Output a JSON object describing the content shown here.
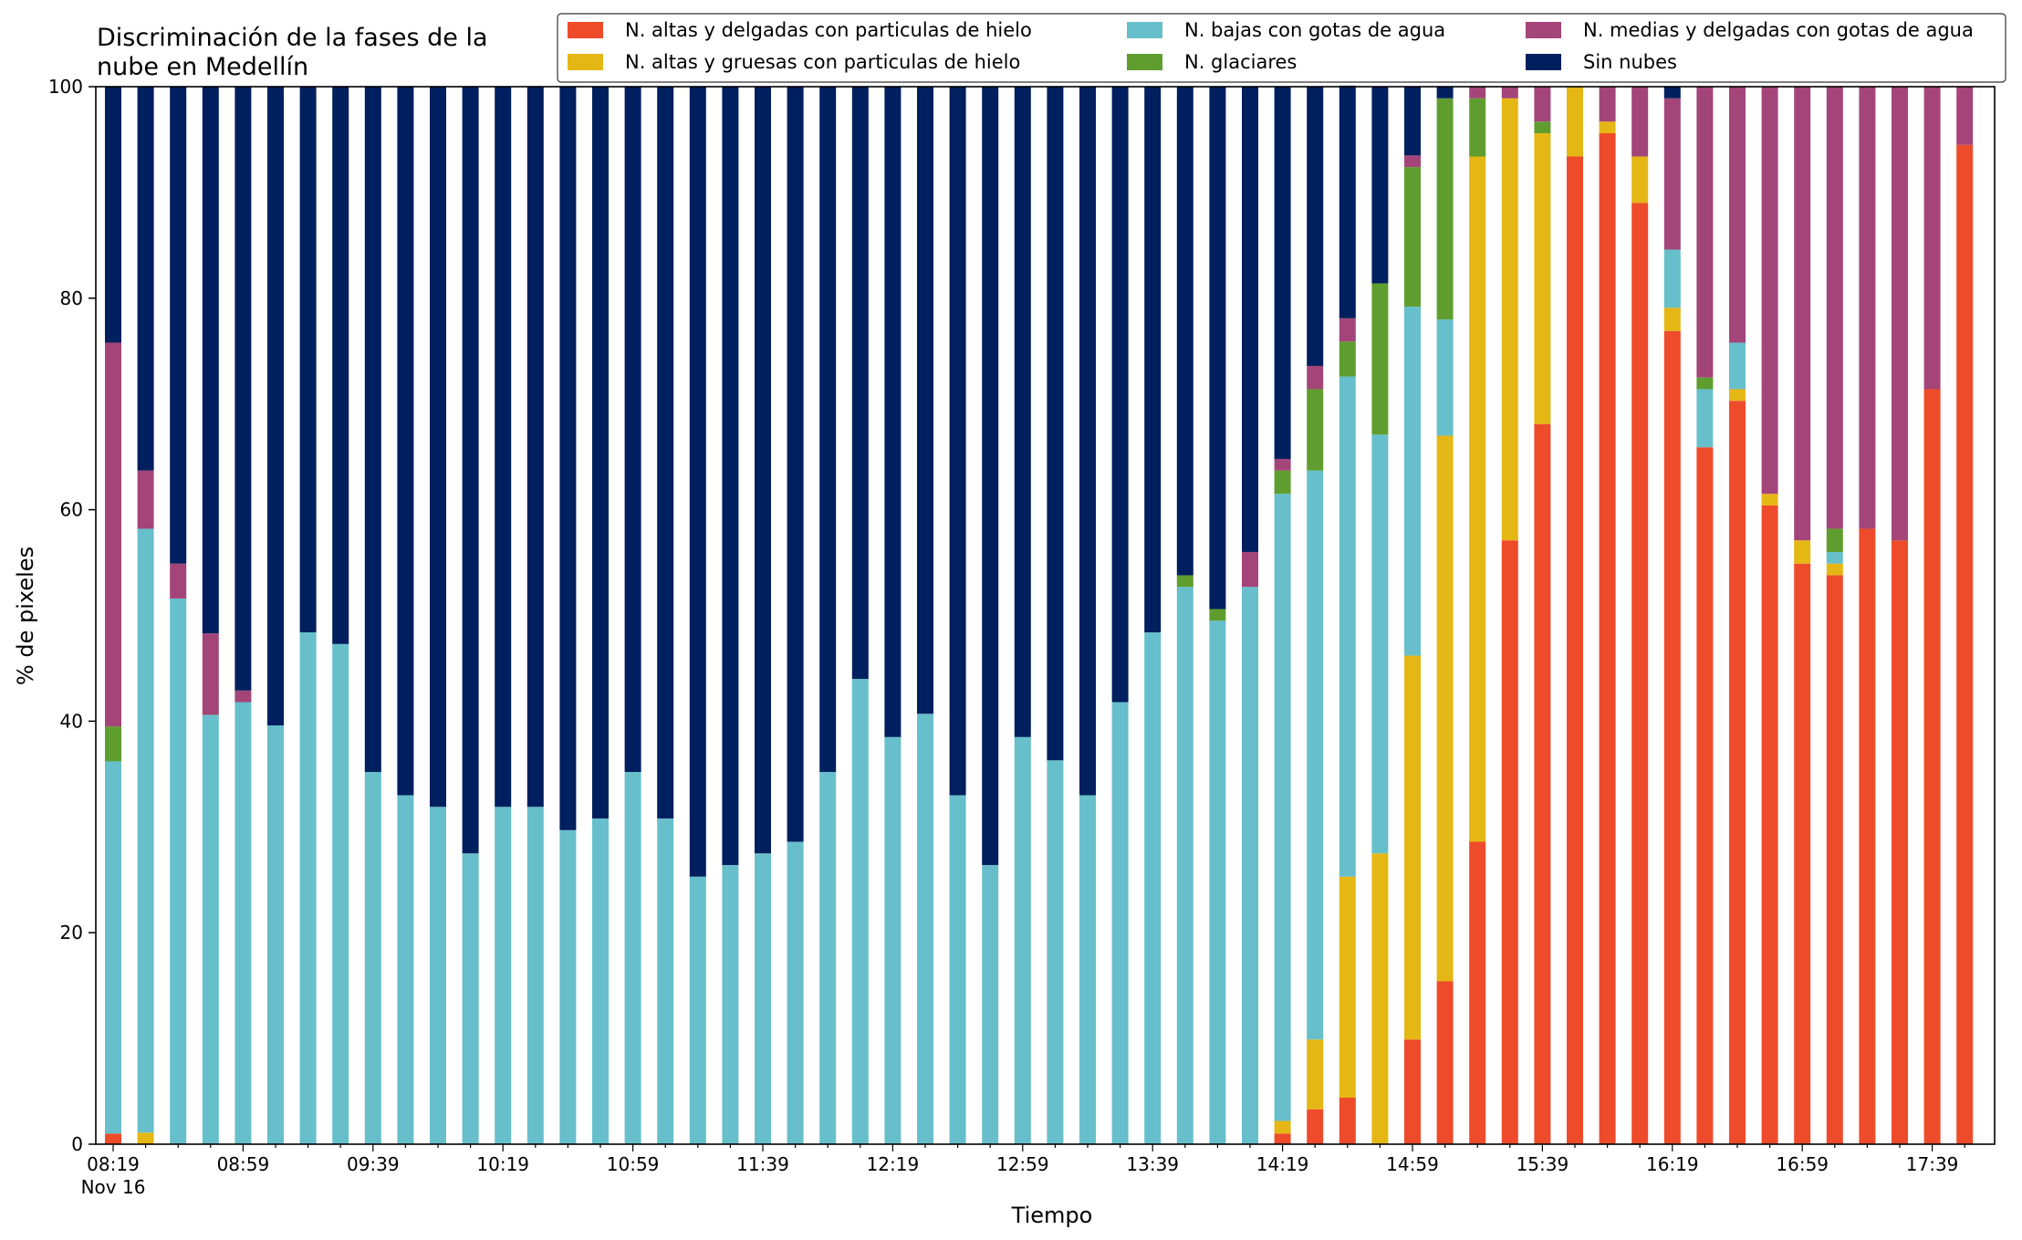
{
  "chart_data": {
    "type": "bar",
    "stacked": true,
    "title": "Discriminación de la fases de la\nnube en Medellín",
    "xlabel": "Tiempo",
    "ylabel": "% de pixeles",
    "ylim": [
      0,
      100
    ],
    "yticks": [
      0,
      20,
      40,
      60,
      80,
      100
    ],
    "grid": false,
    "legend_position": "top-right",
    "x_tick_labels": [
      "08:19",
      "08:59",
      "09:39",
      "10:19",
      "10:59",
      "11:39",
      "12:19",
      "12:59",
      "13:39",
      "14:19",
      "14:59",
      "15:39",
      "16:19",
      "16:59",
      "17:39"
    ],
    "x_tick_sublabel": "Nov 16",
    "categories": [
      "08:19",
      "08:29",
      "08:39",
      "08:49",
      "08:59",
      "09:09",
      "09:19",
      "09:29",
      "09:39",
      "09:49",
      "09:59",
      "10:09",
      "10:19",
      "10:29",
      "10:39",
      "10:49",
      "10:59",
      "11:09",
      "11:19",
      "11:29",
      "11:39",
      "11:49",
      "11:59",
      "12:09",
      "12:19",
      "12:29",
      "12:39",
      "12:49",
      "12:59",
      "13:09",
      "13:19",
      "13:29",
      "13:39",
      "13:49",
      "13:59",
      "14:09",
      "14:19",
      "14:29",
      "14:39",
      "14:49",
      "14:59",
      "15:09",
      "15:19",
      "15:29",
      "15:39",
      "15:49",
      "15:59",
      "16:09",
      "16:19",
      "16:29",
      "16:39",
      "16:49",
      "16:59",
      "17:09",
      "17:19",
      "17:29",
      "17:39",
      "17:49"
    ],
    "series": [
      {
        "name": "N. altas y delgadas con particulas de hielo",
        "color": "#ee4b2b",
        "values": [
          1,
          0,
          0,
          0,
          0,
          0,
          0,
          0,
          0,
          0,
          0,
          0,
          0,
          0,
          0,
          0,
          0,
          0,
          0,
          0,
          0,
          0,
          0,
          0,
          0,
          0,
          0,
          0,
          0,
          0,
          0,
          0,
          0,
          0,
          0,
          0,
          1,
          3.3,
          4.4,
          0,
          9.9,
          15.4,
          28.6,
          57.1,
          68.1,
          93.4,
          95.6,
          89,
          76.9,
          65.9,
          70.3,
          60.4,
          54.9,
          53.8,
          58.2,
          57.1,
          71.4,
          94.5
        ]
      },
      {
        "name": "N. altas y gruesas con particulas de hielo",
        "color": "#e5b715",
        "values": [
          0,
          1.1,
          0,
          0,
          0,
          0,
          0,
          0,
          0,
          0,
          0,
          0,
          0,
          0,
          0,
          0,
          0,
          0,
          0,
          0,
          0,
          0,
          0,
          0,
          0,
          0,
          0,
          0,
          0,
          0,
          0,
          0,
          0,
          0,
          0,
          0,
          1.2,
          6.6,
          20.9,
          27.5,
          36.3,
          51.6,
          64.8,
          41.8,
          27.5,
          6.6,
          1.1,
          4.4,
          2.2,
          0,
          1.1,
          1.1,
          2.2,
          1.1,
          0,
          0,
          0,
          0
        ]
      },
      {
        "name": "N. bajas con gotas de agua",
        "color": "#67bfcb",
        "values": [
          35.2,
          57.1,
          51.6,
          40.6,
          41.8,
          39.6,
          48.4,
          47.3,
          35.2,
          33,
          31.9,
          27.5,
          31.9,
          31.9,
          29.7,
          30.8,
          35.2,
          30.8,
          25.3,
          26.4,
          27.5,
          28.6,
          35.2,
          44,
          38.5,
          40.7,
          33,
          26.4,
          38.5,
          36.3,
          33,
          41.8,
          48.4,
          52.7,
          49.5,
          52.7,
          59.3,
          53.8,
          47.3,
          39.6,
          33,
          11,
          0,
          0,
          0,
          0,
          0,
          0,
          5.5,
          5.5,
          4.4,
          0,
          0,
          1.1,
          0,
          0,
          0,
          0
        ]
      },
      {
        "name": "N. glaciares",
        "color": "#5f9e2e",
        "values": [
          3.3,
          0,
          0,
          0,
          0,
          0,
          0,
          0,
          0,
          0,
          0,
          0,
          0,
          0,
          0,
          0,
          0,
          0,
          0,
          0,
          0,
          0,
          0,
          0,
          0,
          0,
          0,
          0,
          0,
          0,
          0,
          0,
          0,
          1.1,
          1.1,
          0,
          2.2,
          7.7,
          3.3,
          14.3,
          13.2,
          20.9,
          5.5,
          0,
          1.1,
          0,
          0,
          0,
          0,
          1.1,
          0,
          0,
          0,
          2.2,
          0,
          0,
          0,
          0
        ]
      },
      {
        "name": "N. medias y delgadas con gotas de agua",
        "color": "#a4457a",
        "values": [
          36.3,
          5.5,
          3.3,
          7.7,
          1.1,
          0,
          0,
          0,
          0,
          0,
          0,
          0,
          0,
          0,
          0,
          0,
          0,
          0,
          0,
          0,
          0,
          0,
          0,
          0,
          0,
          0,
          0,
          0,
          0,
          0,
          0,
          0,
          0,
          0,
          0,
          3.3,
          1.1,
          2.2,
          2.2,
          0,
          1.1,
          0,
          1.1,
          1.1,
          3.3,
          0,
          3.3,
          6.6,
          14.3,
          27.5,
          24.2,
          38.5,
          42.9,
          41.8,
          41.8,
          42.9,
          28.6,
          5.5
        ]
      },
      {
        "name": "Sin nubes",
        "color": "#001f5f",
        "values": [
          24.2,
          36.3,
          45.1,
          51.7,
          57.1,
          60.4,
          51.6,
          52.7,
          64.8,
          67,
          68.1,
          72.5,
          68.1,
          68.1,
          70.3,
          69.2,
          64.8,
          69.2,
          74.7,
          73.6,
          72.5,
          71.4,
          64.8,
          56,
          61.5,
          59.3,
          67,
          73.6,
          61.5,
          63.7,
          67,
          58.2,
          51.6,
          46.2,
          49.4,
          44,
          35.2,
          26.4,
          22,
          18.6,
          6.5,
          1.1,
          0,
          0,
          0,
          0,
          0,
          0,
          1.1,
          0,
          0,
          0,
          0,
          0,
          0,
          0,
          0,
          0
        ]
      }
    ]
  }
}
